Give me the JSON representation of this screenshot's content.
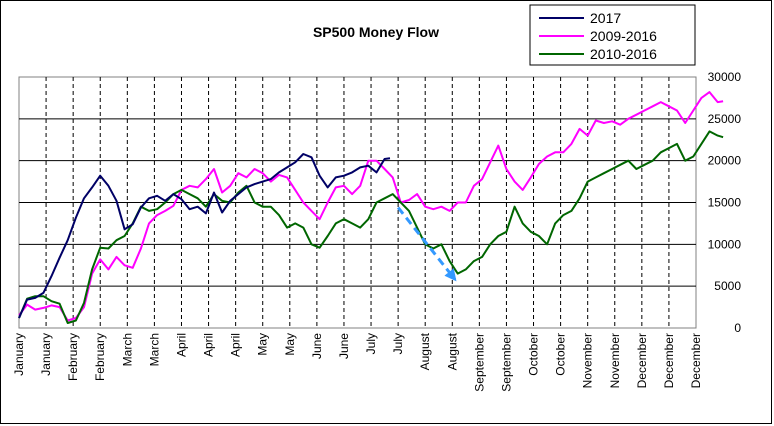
{
  "chart_data": {
    "type": "line",
    "title": "SP500 Money Flow",
    "xlabel": "",
    "ylabel": "",
    "ylim": [
      0,
      30000
    ],
    "yticks": [
      0,
      5000,
      10000,
      15000,
      20000,
      25000,
      30000
    ],
    "x_tick_labels": [
      "January",
      "January",
      "February",
      "February",
      "March",
      "March",
      "April",
      "April",
      "April",
      "May",
      "May",
      "June",
      "June",
      "July",
      "July",
      "August",
      "August",
      "September",
      "September",
      "October",
      "October",
      "November",
      "November",
      "December",
      "December",
      "December"
    ],
    "legend": {
      "placement": "top-right"
    },
    "grid": {
      "horizontal": "solid",
      "vertical": "dashed"
    },
    "series": [
      {
        "name": "2017",
        "color": "#000066",
        "x": [
          0,
          0.3,
          0.6,
          0.9,
          1.2,
          1.5,
          1.8,
          2.1,
          2.4,
          2.7,
          3.0,
          3.3,
          3.6,
          3.9,
          4.2,
          4.5,
          4.8,
          5.1,
          5.4,
          5.7,
          6.0,
          6.3,
          6.6,
          6.9,
          7.2,
          7.5,
          7.8,
          8.1,
          8.4,
          8.7,
          9.0,
          9.3,
          9.6,
          9.9,
          10.2,
          10.5,
          10.8,
          11.1,
          11.4,
          11.7,
          12.0,
          12.3,
          12.6,
          12.9,
          13.2,
          13.5,
          13.7
        ],
        "values": [
          1200,
          3400,
          3600,
          4200,
          6200,
          8400,
          10500,
          13200,
          15500,
          16800,
          18200,
          17000,
          15200,
          11800,
          12400,
          14400,
          15500,
          15800,
          15200,
          16000,
          15400,
          14200,
          14500,
          13700,
          16200,
          13800,
          15200,
          16000,
          16800,
          17200,
          17500,
          17800,
          18600,
          19200,
          19800,
          20800,
          20400,
          18200,
          16800,
          18000,
          18200,
          18600,
          19200,
          19400,
          18600,
          20200,
          20300
        ]
      },
      {
        "name": "2009-2016",
        "color": "#ff00ff",
        "x": [
          0,
          0.3,
          0.6,
          0.9,
          1.2,
          1.5,
          1.8,
          2.1,
          2.4,
          2.7,
          3.0,
          3.3,
          3.6,
          3.9,
          4.2,
          4.5,
          4.8,
          5.1,
          5.4,
          5.7,
          6.0,
          6.3,
          6.6,
          6.9,
          7.2,
          7.5,
          7.8,
          8.1,
          8.4,
          8.7,
          9.0,
          9.3,
          9.6,
          9.9,
          10.2,
          10.5,
          10.8,
          11.1,
          11.4,
          11.7,
          12.0,
          12.3,
          12.6,
          12.9,
          13.2,
          13.5,
          13.8,
          14.1,
          14.4,
          14.7,
          15.0,
          15.3,
          15.6,
          15.9,
          16.2,
          16.5,
          16.8,
          17.1,
          17.4,
          17.7,
          18.0,
          18.3,
          18.6,
          18.9,
          19.2,
          19.5,
          19.8,
          20.1,
          20.4,
          20.7,
          21.0,
          21.3,
          21.6,
          21.9,
          22.2,
          22.5,
          22.8,
          23.1,
          23.4,
          23.7,
          24.0,
          24.3,
          24.6,
          24.9,
          25.2,
          25.5,
          25.8,
          26.0
        ],
        "values": [
          1500,
          2800,
          2200,
          2400,
          2700,
          2500,
          900,
          1200,
          2500,
          6500,
          8200,
          7000,
          8500,
          7500,
          7200,
          9500,
          12500,
          13500,
          14000,
          14600,
          16500,
          17000,
          16800,
          17800,
          19000,
          16200,
          17000,
          18500,
          18000,
          19000,
          18500,
          17500,
          18300,
          18000,
          16500,
          15000,
          14000,
          13000,
          15000,
          16800,
          17000,
          16000,
          17000,
          20000,
          20000,
          19000,
          18000,
          15000,
          15300,
          16000,
          14500,
          14200,
          14500,
          14000,
          15000,
          15000,
          17000,
          17800,
          19800,
          21800,
          19000,
          17500,
          16500,
          18000,
          19600,
          20500,
          21000,
          21000,
          22000,
          23800,
          23000,
          24800,
          24500,
          24700,
          24300,
          25000,
          25500,
          26000,
          26500,
          27000,
          26500,
          26000,
          24500,
          26000,
          27500,
          28200,
          27000,
          27100
        ]
      },
      {
        "name": "2010-2016",
        "color": "#006600",
        "x": [
          0,
          0.3,
          0.6,
          0.9,
          1.2,
          1.5,
          1.8,
          2.1,
          2.4,
          2.7,
          3.0,
          3.3,
          3.6,
          3.9,
          4.2,
          4.5,
          4.8,
          5.1,
          5.4,
          5.7,
          6.0,
          6.3,
          6.6,
          6.9,
          7.2,
          7.5,
          7.8,
          8.1,
          8.4,
          8.7,
          9.0,
          9.3,
          9.6,
          9.9,
          10.2,
          10.5,
          10.8,
          11.1,
          11.4,
          11.7,
          12.0,
          12.3,
          12.6,
          12.9,
          13.2,
          13.5,
          13.8,
          14.1,
          14.4,
          14.7,
          15.0,
          15.3,
          15.6,
          15.9,
          16.2,
          16.5,
          16.8,
          17.1,
          17.4,
          17.7,
          18.0,
          18.3,
          18.6,
          18.9,
          19.2,
          19.5,
          19.8,
          20.1,
          20.4,
          20.7,
          21.0,
          21.3,
          21.6,
          21.9,
          22.2,
          22.5,
          22.8,
          23.1,
          23.4,
          23.7,
          24.0,
          24.3,
          24.6,
          24.9,
          25.2,
          25.5,
          25.8,
          26.0
        ],
        "values": [
          1200,
          3500,
          3800,
          3800,
          3200,
          2900,
          600,
          900,
          3000,
          7000,
          9600,
          9500,
          10500,
          11000,
          12500,
          14500,
          14000,
          14200,
          15000,
          16000,
          16500,
          16000,
          15500,
          14500,
          16000,
          15200,
          15000,
          16200,
          17000,
          15000,
          14500,
          14500,
          13500,
          12000,
          12500,
          12000,
          10000,
          9600,
          11000,
          12500,
          13000,
          12500,
          12000,
          13000,
          15000,
          15500,
          16000,
          15000,
          14000,
          12000,
          10000,
          9500,
          10000,
          8000,
          6500,
          7000,
          8000,
          8500,
          10000,
          11000,
          11500,
          14500,
          12500,
          11500,
          11000,
          10000,
          12500,
          13500,
          14000,
          15500,
          17500,
          18000,
          18500,
          19000,
          19500,
          20000,
          19000,
          19500,
          20000,
          21000,
          21500,
          22000,
          20000,
          20500,
          22000,
          23500,
          23000,
          22800
        ]
      }
    ],
    "annotations": [
      {
        "type": "dashed-arrow",
        "color": "#3399ff",
        "from": {
          "x": 14.0,
          "value": 14400
        },
        "to": {
          "x": 16.1,
          "value": 5800
        }
      }
    ]
  }
}
